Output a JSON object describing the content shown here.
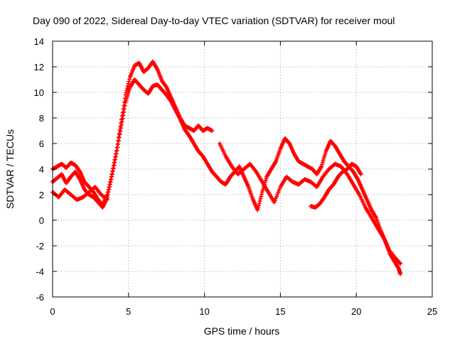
{
  "chart_data": {
    "type": "scatter",
    "title": "Day 090 of 2022, Sidereal Day-to-day VTEC variation (SDTVAR) for receiver moul",
    "xlabel": "GPS time / hours",
    "ylabel": "SDTVAR / TECUs",
    "xlim": [
      0,
      25
    ],
    "ylim": [
      -6,
      14
    ],
    "xticks": [
      0,
      5,
      10,
      15,
      20,
      25
    ],
    "yticks": [
      -6,
      -4,
      -2,
      0,
      2,
      4,
      6,
      8,
      10,
      12,
      14
    ],
    "grid": true,
    "marker": "+",
    "series": [
      {
        "name": "SDTVAR",
        "color": "#ff0000",
        "tracks": [
          {
            "x": [
              0,
              0.3,
              0.6,
              0.9,
              1.2,
              1.5,
              1.8,
              2.1,
              2.4,
              2.7,
              3.0,
              3.3,
              3.6,
              3.9,
              4.2,
              4.5,
              4.8,
              5.1,
              5.4,
              5.7,
              6.0,
              6.3,
              6.6,
              6.9,
              7.2,
              7.5,
              7.8,
              8.1,
              8.4,
              8.7,
              9.0,
              9.3,
              9.6,
              9.9,
              10.2,
              10.5
            ],
            "y": [
              4.0,
              4.2,
              4.4,
              4.1,
              4.5,
              4.3,
              3.8,
              3.0,
              2.6,
              2.2,
              1.6,
              1.2,
              2.0,
              3.6,
              5.4,
              7.6,
              9.8,
              11.2,
              12.1,
              12.3,
              11.6,
              11.9,
              12.4,
              11.8,
              10.9,
              10.4,
              9.6,
              8.8,
              8.0,
              7.4,
              7.2,
              7.0,
              7.4,
              7.0,
              7.2,
              7.0
            ]
          },
          {
            "x": [
              0,
              0.3,
              0.6,
              0.9,
              1.2,
              1.5,
              1.8,
              2.1,
              2.4,
              2.7,
              3.0,
              3.3,
              3.6,
              3.9,
              4.2,
              4.5,
              4.8,
              5.1,
              5.4,
              5.7,
              6.0,
              6.3,
              6.6,
              6.9,
              7.2,
              7.5,
              7.8,
              8.1,
              8.4,
              8.7,
              9.0,
              9.3,
              9.6,
              9.9,
              10.2,
              10.5,
              10.8,
              11.1,
              11.4,
              11.7,
              12.0,
              12.3,
              12.6,
              12.9,
              13.2,
              13.5,
              13.8,
              14.1,
              14.4,
              14.7,
              15.0,
              15.3,
              15.6,
              15.9,
              16.2,
              16.5,
              16.8,
              17.1,
              17.4,
              17.7,
              18.0,
              18.3,
              18.6,
              18.9,
              19.2,
              19.5,
              19.8,
              20.1,
              20.4,
              20.7,
              21.0,
              21.3,
              21.6,
              21.9,
              22.2,
              22.5,
              22.8,
              22.9
            ],
            "y": [
              3.0,
              3.3,
              3.6,
              2.9,
              3.4,
              3.8,
              3.2,
              2.4,
              2.0,
              1.8,
              1.4,
              1.0,
              1.8,
              3.4,
              5.2,
              7.2,
              9.2,
              10.4,
              11.0,
              10.6,
              10.2,
              9.9,
              10.5,
              10.6,
              10.2,
              9.8,
              9.3,
              8.6,
              7.9,
              7.1,
              6.6,
              6.0,
              5.4,
              5.0,
              4.4,
              3.8,
              3.4,
              3.0,
              2.8,
              3.4,
              3.8,
              4.2,
              3.4,
              2.6,
              1.6,
              0.8,
              2.2,
              3.4,
              4.0,
              4.6,
              5.6,
              6.4,
              6.0,
              5.2,
              4.6,
              4.4,
              4.2,
              4.0,
              3.6,
              4.2,
              5.4,
              6.2,
              5.8,
              5.2,
              4.6,
              4.2,
              3.8,
              3.2,
              2.4,
              1.6,
              0.8,
              0.2,
              -0.8,
              -1.6,
              -2.6,
              -3.2,
              -3.8,
              -4.2
            ]
          },
          {
            "x": [
              0,
              0.4,
              0.8,
              1.2,
              1.6,
              2.0,
              2.4,
              2.8,
              3.2,
              3.6
            ],
            "y": [
              2.2,
              1.8,
              2.4,
              2.0,
              1.6,
              1.8,
              2.2,
              2.6,
              2.0,
              1.6
            ]
          },
          {
            "x": [
              11.0,
              11.4,
              11.8,
              12.2,
              12.6,
              13.0,
              13.4,
              13.8,
              14.2,
              14.6,
              15.0,
              15.4,
              15.8,
              16.2,
              16.6,
              17.0,
              17.4,
              17.8,
              18.2,
              18.6,
              19.0,
              19.4,
              19.8,
              20.2,
              20.6,
              21.0,
              21.4,
              21.8,
              22.2,
              22.6,
              22.9
            ],
            "y": [
              6.0,
              5.0,
              4.2,
              3.6,
              4.0,
              4.4,
              3.8,
              3.0,
              2.2,
              1.4,
              2.6,
              3.4,
              3.0,
              2.8,
              3.2,
              3.0,
              2.6,
              3.4,
              4.0,
              4.4,
              4.2,
              3.6,
              2.8,
              2.0,
              1.0,
              0.2,
              -0.6,
              -1.4,
              -2.4,
              -3.0,
              -3.4
            ]
          },
          {
            "x": [
              17.0,
              17.3,
              17.6,
              17.9,
              18.2,
              18.5,
              18.8,
              19.1,
              19.4,
              19.7,
              20.0,
              20.3
            ],
            "y": [
              1.1,
              1.0,
              1.3,
              1.8,
              2.4,
              2.8,
              3.4,
              3.8,
              4.0,
              4.4,
              4.2,
              3.6
            ]
          }
        ]
      }
    ]
  }
}
